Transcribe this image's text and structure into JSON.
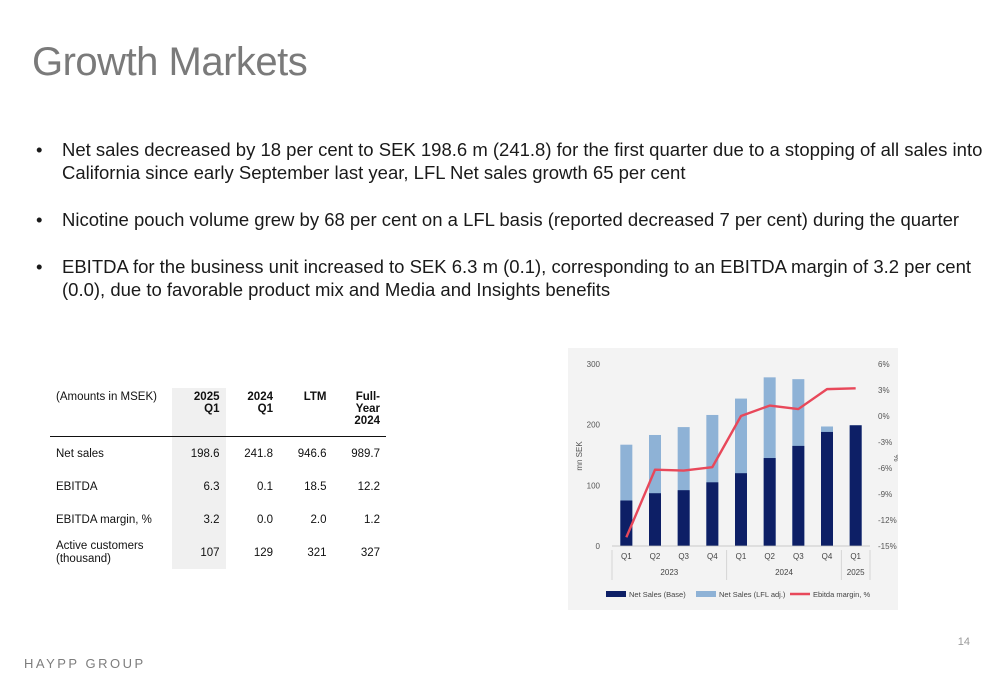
{
  "title": "Growth Markets",
  "bullets": [
    "Net sales decreased by 18 per cent to SEK 198.6 m (241.8) for the first quarter due to a stopping of all sales into California since early September last year, LFL Net sales growth 65 per cent",
    "Nicotine pouch volume grew by 68 per cent on a LFL basis (reported decreased 7 per cent) during the quarter",
    "EBITDA for the business unit increased to SEK 6.3 m (0.1), corresponding to an EBITDA margin of 3.2 per cent (0.0), due to favorable product mix and Media and Insights benefits"
  ],
  "bullet_symbol": "•",
  "table": {
    "headers": [
      "(Amounts in MSEK)",
      "2025\nQ1",
      "2024\nQ1",
      "LTM",
      "Full-\nYear\n2024"
    ],
    "rows": [
      [
        "Net sales",
        "198.6",
        "241.8",
        "946.6",
        "989.7"
      ],
      [
        "EBITDA",
        "6.3",
        "0.1",
        "18.5",
        "12.2"
      ],
      [
        "EBITDA margin, %",
        "3.2",
        "0.0",
        "2.0",
        "1.2"
      ],
      [
        "Active customers\n(thousand)",
        "107",
        "129",
        "321",
        "327"
      ]
    ]
  },
  "chart_data": {
    "type": "bar",
    "categories": [
      "Q1",
      "Q2",
      "Q3",
      "Q4",
      "Q1",
      "Q2",
      "Q3",
      "Q4",
      "Q1"
    ],
    "years": [
      {
        "label": "2023",
        "quarters": 4
      },
      {
        "label": "2024",
        "quarters": 4
      },
      {
        "label": "2025",
        "quarters": 1
      }
    ],
    "series": [
      {
        "name": "Net Sales (Base)",
        "type": "bar",
        "values": [
          75,
          87,
          92,
          105,
          120,
          145,
          165,
          188,
          199
        ],
        "color": "#0d1f66"
      },
      {
        "name": "Net Sales (LFL adj.)",
        "type": "bar",
        "values": [
          167,
          183,
          196,
          216,
          243,
          278,
          275,
          197,
          199
        ],
        "color": "#8eb2d6"
      },
      {
        "name": "Ebitda margin, %",
        "type": "line",
        "axis": "right",
        "values": [
          -14,
          -6.2,
          -6.3,
          -5.9,
          0,
          1.2,
          0.8,
          3.1,
          3.2
        ],
        "color": "#e8485a"
      }
    ],
    "ylabel": "mn SEK",
    "ylabel_right": "%",
    "ylim": [
      0,
      300
    ],
    "yticks": [
      0,
      100,
      200,
      300
    ],
    "ylim_right": [
      -15,
      6
    ],
    "yticks_right": [
      "6%",
      "3%",
      "0%",
      "-3%",
      "-6%",
      "-9%",
      "-12%",
      "-15%"
    ],
    "legend_position": "bottom",
    "grid": false
  },
  "footer": {
    "logo": "HAYPP GROUP",
    "page": "14"
  }
}
